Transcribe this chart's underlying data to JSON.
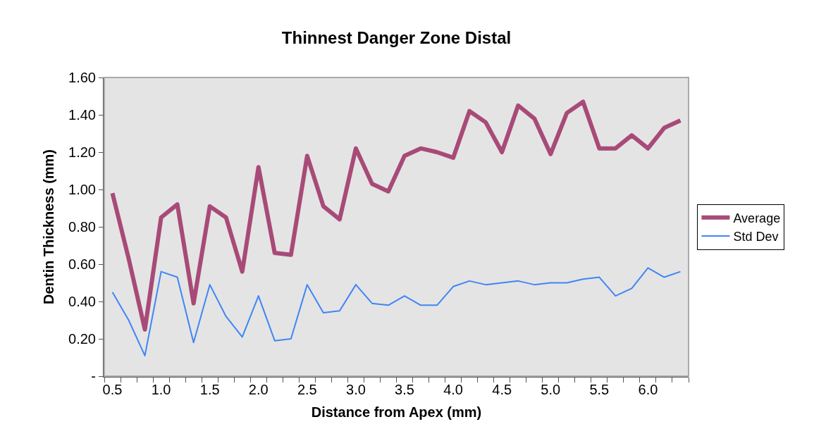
{
  "chart_data": {
    "type": "line",
    "title": "Thinnest Danger Zone Distal",
    "xlabel": "Distance from Apex (mm)",
    "ylabel": "Dentin Thickness (mm)",
    "categories": [
      "0.5",
      null,
      null,
      "1.0",
      null,
      null,
      "1.5",
      null,
      null,
      "2.0",
      null,
      null,
      "2.5",
      null,
      null,
      "3.0",
      null,
      null,
      "3.5",
      null,
      null,
      "4.0",
      null,
      null,
      "4.5",
      null,
      null,
      "5.0",
      null,
      null,
      "5.5",
      null,
      null,
      "6.0",
      null,
      null
    ],
    "series": [
      {
        "name": "Average",
        "color": "#a84a78",
        "values": [
          0.98,
          0.63,
          0.25,
          0.85,
          0.92,
          0.39,
          0.91,
          0.85,
          0.56,
          1.12,
          0.66,
          0.65,
          1.18,
          0.91,
          0.84,
          1.22,
          1.03,
          0.99,
          1.18,
          1.22,
          1.2,
          1.17,
          1.42,
          1.36,
          1.2,
          1.45,
          1.38,
          1.19,
          1.41,
          1.47,
          1.22,
          1.22,
          1.29,
          1.22,
          1.33,
          1.37
        ]
      },
      {
        "name": "Std Dev",
        "color": "#3f85f7",
        "values": [
          0.45,
          0.3,
          0.11,
          0.56,
          0.53,
          0.18,
          0.49,
          0.32,
          0.21,
          0.43,
          0.19,
          0.2,
          0.49,
          0.34,
          0.35,
          0.49,
          0.39,
          0.38,
          0.43,
          0.38,
          0.38,
          0.48,
          0.51,
          0.49,
          0.5,
          0.51,
          0.49,
          0.5,
          0.5,
          0.52,
          0.53,
          0.43,
          0.47,
          0.58,
          0.53,
          0.56
        ]
      }
    ],
    "ylim": [
      0,
      1.6
    ],
    "yticks": [
      {
        "value": 0,
        "label": "-"
      },
      {
        "value": 0.2,
        "label": "0.20"
      },
      {
        "value": 0.4,
        "label": "0.40"
      },
      {
        "value": 0.6,
        "label": "0.60"
      },
      {
        "value": 0.8,
        "label": "0.80"
      },
      {
        "value": 1.0,
        "label": "1.00"
      },
      {
        "value": 1.2,
        "label": "1.20"
      },
      {
        "value": 1.4,
        "label": "1.40"
      },
      {
        "value": 1.6,
        "label": "1.60"
      }
    ],
    "legend": "right",
    "grid": false,
    "marker": "none",
    "line_style": "solid"
  }
}
